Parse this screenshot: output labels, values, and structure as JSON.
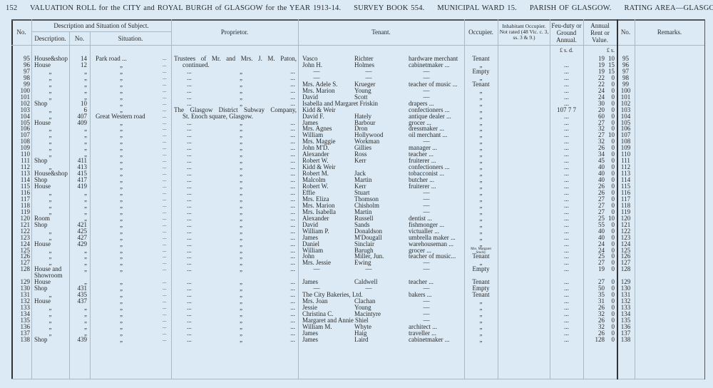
{
  "header": {
    "page": "152",
    "title": "VALUATION ROLL for the CITY and ROYAL BURGH of GLASGOW for the YEAR 1913-14.",
    "survey_book": "SURVEY BOOK 554.",
    "ward": "MUNICIPAL WARD 15.",
    "parish": "PARISH OF GLASGOW.",
    "rating_area": "RATING AREA—GLASGOW."
  },
  "columns": {
    "no": "No.",
    "desc_group": "Description and Situation of Subject.",
    "description": "Description.",
    "number": "No.",
    "situation": "Situation.",
    "proprietor": "Proprietor.",
    "tenant": "Tenant.",
    "occupier": "Occupier.",
    "inhabitant": "Inhabitant Occupier. Not rated (48 Vic. c. 3, ss. 3 & 9.)",
    "feu": "Feu-duty or Ground Annual.",
    "rent": "Annual Rent or Value.",
    "no2": "No.",
    "remarks": "Remarks.",
    "feu_units": "£  s.  d.",
    "rent_units": "£  s."
  },
  "leader": "...",
  "rows": [
    [
      "95",
      "House&shop",
      "14",
      "Park road   ...",
      "Trustees of Mr. and Mrs. J. M. Paton,",
      "Vasco",
      "Richter",
      "hardware merchant",
      "Tenant",
      "",
      "19",
      "10"
    ],
    [
      "96",
      "House",
      "12",
      "„",
      "continued.",
      "John H.",
      "Holmes",
      "cabinetmaker   ...",
      "„",
      "...",
      "19",
      "15"
    ],
    [
      "97",
      "„",
      "„",
      "„",
      "...  „  ...",
      "—",
      "—",
      "—",
      "Empty",
      "...",
      "19",
      "15"
    ],
    [
      "98",
      "„",
      "„",
      "„",
      "...  „  ...",
      "—",
      "—",
      "—",
      "„",
      "...",
      "22",
      "0"
    ],
    [
      "99",
      "„",
      "„",
      "„",
      "...  „  ...",
      "Mrs. Adele S.",
      "Krueger",
      "teacher of music ...",
      "Tenant",
      "...",
      "22",
      "0"
    ],
    [
      "100",
      "„",
      "„",
      "„",
      "...  „  ...",
      "Mrs. Marion",
      "Young",
      "—",
      "„",
      "...",
      "24",
      "0"
    ],
    [
      "101",
      "„",
      "„",
      "„",
      "...  „  ...",
      "David",
      "Scott",
      "—",
      "„",
      "...",
      "24",
      "0"
    ],
    [
      "102",
      "Shop",
      "10",
      "„",
      "...  „  ...",
      "Isabella and Margaret Friskin",
      "",
      "drapers   ...",
      "„",
      "...",
      "30",
      "0"
    ],
    [
      "103",
      "„",
      "6",
      "„",
      "The Glasgow District Subway Company,",
      "Kidd & Weir",
      "",
      "confectioners   ...",
      "„",
      "107  7  7",
      "20",
      "0"
    ],
    [
      "104",
      "„",
      "407",
      "Great Western road",
      "St. Enoch square, Glasgow.",
      "David F.",
      "Hately",
      "antique dealer   ...",
      "„",
      "...",
      "60",
      "0"
    ],
    [
      "105",
      "House",
      "409",
      "„",
      "...  „  ...",
      "James",
      "Barbour",
      "grocer   ...",
      "„",
      "...",
      "27",
      "0"
    ],
    [
      "106",
      "„",
      "„",
      "„",
      "...  „  ...",
      "Mrs. Agnes",
      "Dron",
      "dressmaker   ...",
      "„",
      "...",
      "32",
      "0"
    ],
    [
      "107",
      "„",
      "„",
      "„",
      "...  „  ...",
      "William",
      "Hollywood",
      "oil merchant   ...",
      "„",
      "...",
      "27",
      "10"
    ],
    [
      "108",
      "„",
      "„",
      "„",
      "...  „  ...",
      "Mrs. Maggie",
      "Workman",
      "—",
      "„",
      "...",
      "32",
      "0"
    ],
    [
      "109",
      "„",
      "„",
      "„",
      "...  „  ...",
      "John M'D.",
      "Gillies",
      "manager   ...",
      "„",
      "...",
      "26",
      "0"
    ],
    [
      "110",
      "„",
      "„",
      "„",
      "...  „  ...",
      "Alexander",
      "Ross",
      "teacher   ...",
      "„",
      "...",
      "34",
      "0"
    ],
    [
      "111",
      "Shop",
      "411",
      "„",
      "...  „  ...",
      "Robert W.",
      "Kerr",
      "fruiterer   ...",
      "„",
      "...",
      "45",
      "0"
    ],
    [
      "112",
      "„",
      "413",
      "„",
      "...  „  ...",
      "Kidd & Weir",
      "",
      "confectioners   ...",
      "„",
      "...",
      "40",
      "0"
    ],
    [
      "113",
      "House&shop",
      "415",
      "„",
      "...  „  ...",
      "Robert M.",
      "Jack",
      "tobacconist   ...",
      "„",
      "...",
      "40",
      "0"
    ],
    [
      "114",
      "Shop",
      "417",
      "„",
      "...  „  ...",
      "Malcolm",
      "Martin",
      "butcher   ...",
      "„",
      "...",
      "40",
      "0"
    ],
    [
      "115",
      "House",
      "419",
      "„",
      "...  „  ...",
      "Robert W.",
      "Kerr",
      "fruiterer   ...",
      "„",
      "...",
      "26",
      "0"
    ],
    [
      "116",
      "„",
      "„",
      "„",
      "...  „  ...",
      "Effie",
      "Stuart",
      "—",
      "„",
      "...",
      "26",
      "0"
    ],
    [
      "117",
      "„",
      "„",
      "„",
      "...  „  ...",
      "Mrs. Eliza",
      "Thomson",
      "—",
      "„",
      "...",
      "27",
      "0"
    ],
    [
      "118",
      "„",
      "„",
      "„",
      "...  „  ...",
      "Mrs. Marion",
      "Chisholm",
      "—",
      "„",
      "...",
      "27",
      "0"
    ],
    [
      "119",
      "„",
      "„",
      "„",
      "...  „  ...",
      "Mrs. Isabella",
      "Martin",
      "—",
      "„",
      "...",
      "27",
      "0"
    ],
    [
      "120",
      "Room",
      "„",
      "„",
      "...  „  ...",
      "Alexander",
      "Russell",
      "dentist   ...",
      "„",
      "...",
      "25",
      "10"
    ],
    [
      "121",
      "Shop",
      "421",
      "„",
      "...  „  ...",
      "David",
      "Sands",
      "fishmonger   ...",
      "„",
      "...",
      "55",
      "0"
    ],
    [
      "122",
      "„",
      "425",
      "„",
      "...  „  ...",
      "William P.",
      "Donaldson",
      "victualler   ...",
      "„",
      "...",
      "40",
      "0"
    ],
    [
      "123",
      "„",
      "427",
      "„",
      "...  „  ...",
      "James",
      "M'Dougall",
      "umbrella maker ...",
      "„",
      "...",
      "40",
      "0"
    ],
    [
      "124",
      "House",
      "429",
      "„",
      "...  „  ...",
      "Daniel",
      "Sinclair",
      "warehouseman   ...",
      "„",
      "...",
      "24",
      "0"
    ],
    [
      "125",
      "„",
      "„",
      "„",
      "...  „  ...",
      "William",
      "Barugh",
      "grocer   ...",
      "Mrs. Margaret Stocky",
      "...",
      "24",
      "0"
    ],
    [
      "126",
      "„",
      "„",
      "„",
      "...  „  ...",
      "John",
      "Miller, Jun.",
      "teacher of music...",
      "Tenant",
      "...",
      "25",
      "0"
    ],
    [
      "127",
      "„",
      "„",
      "„",
      "...  „  ...",
      "Mrs. Jessie",
      "Ewing",
      "—",
      "„",
      "...",
      "27",
      "0"
    ],
    [
      "128",
      "House and Showroom",
      "„",
      "„",
      "...  „  ...",
      "—",
      "—",
      "—",
      "Empty",
      "...",
      "19",
      "0"
    ],
    [
      "129",
      "House",
      "„",
      "„",
      "...  „  ...",
      "James",
      "Caldwell",
      "teacher   ...",
      "Tenant",
      "...",
      "27",
      "0"
    ],
    [
      "130",
      "Shop",
      "431",
      "„",
      "...  „  ...",
      "—",
      "—",
      "—",
      "Empty",
      "...",
      "50",
      "0"
    ],
    [
      "131",
      "„",
      "435",
      "„",
      "...  „  ...",
      "The City Bakeries, Ltd.",
      "",
      "bakers   ...",
      "Tenant",
      "...",
      "35",
      "0"
    ],
    [
      "132",
      "House",
      "437",
      "„",
      "...  „  ...",
      "Mrs. Joan",
      "Clachan",
      "—",
      "„",
      "...",
      "31",
      "0"
    ],
    [
      "133",
      "„",
      "„",
      "„",
      "...  „  ...",
      "Jessie",
      "Young",
      "—",
      "„",
      "...",
      "26",
      "0"
    ],
    [
      "134",
      "„",
      "„",
      "„",
      "...  „  ...",
      "Christina C.",
      "Macintyre",
      "—",
      "„",
      "...",
      "32",
      "0"
    ],
    [
      "135",
      "„",
      "„",
      "„",
      "...  „  ...",
      "Margaret and Annie Shiel",
      "",
      "—",
      "„",
      "...",
      "26",
      "0"
    ],
    [
      "136",
      "„",
      "„",
      "„",
      "...  „  ...",
      "William M.",
      "Whyte",
      "architect   ...",
      "„",
      "...",
      "32",
      "0"
    ],
    [
      "137",
      "„",
      "„",
      "„",
      "...  „  ...",
      "James",
      "Haig",
      "traveller   ...",
      "„",
      "...",
      "26",
      "0"
    ],
    [
      "138",
      "Shop",
      "439",
      "„",
      "...  „  ...",
      "James",
      "Laird",
      "cabinetmaker   ...",
      "„",
      "...",
      "128",
      "0"
    ]
  ]
}
